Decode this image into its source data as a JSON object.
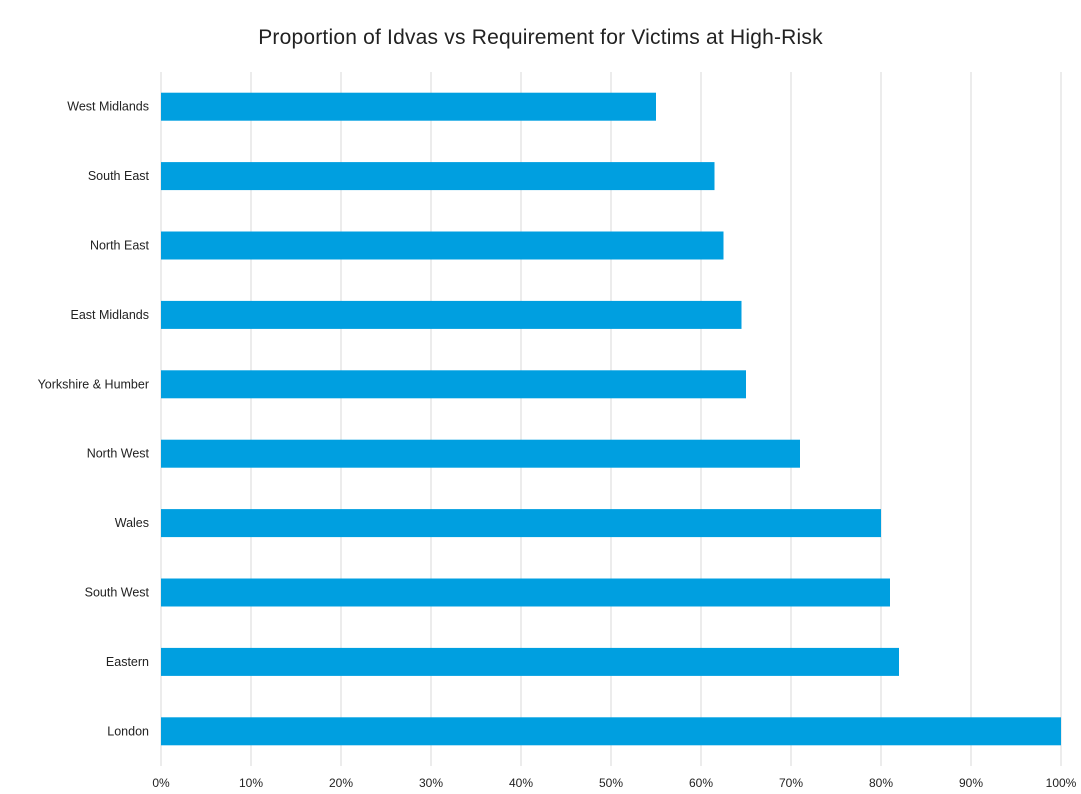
{
  "chart_data": {
    "type": "bar",
    "orientation": "horizontal",
    "title": "Proportion of Idvas vs Requirement for Victims at High-Risk",
    "xlabel": "",
    "ylabel": "",
    "categories": [
      "West Midlands",
      "South East",
      "North East",
      "East Midlands",
      "Yorkshire & Humber",
      "North West",
      "Wales",
      "South West",
      "Eastern",
      "London"
    ],
    "values": [
      0.55,
      0.615,
      0.625,
      0.645,
      0.65,
      0.71,
      0.8,
      0.81,
      0.82,
      1.0
    ],
    "xlim": [
      0,
      1
    ],
    "ticks": [
      "0%",
      "10%",
      "20%",
      "30%",
      "40%",
      "50%",
      "60%",
      "70%",
      "80%",
      "90%",
      "100%"
    ],
    "grid": true,
    "legend": "none",
    "bar_color": "#009fe0",
    "grid_color": "#d9d9d9"
  }
}
